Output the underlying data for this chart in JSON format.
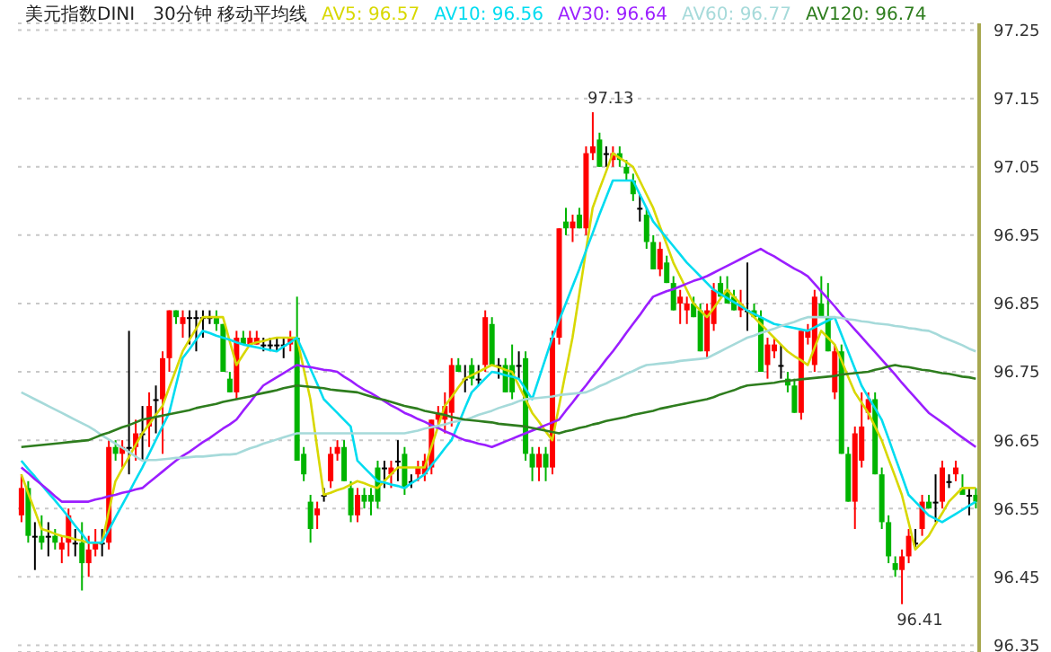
{
  "chart_data": {
    "type": "candlestick",
    "title": "美元指数DINI",
    "subtitle": "30分钟 移动平均线",
    "legend": "top",
    "grid": "y",
    "tick_labels": "y",
    "ylim": [
      96.34,
      97.26
    ],
    "yticks": [
      96.35,
      96.45,
      96.55,
      96.65,
      96.75,
      96.85,
      96.95,
      97.05,
      97.15,
      97.25
    ],
    "categories": [
      null,
      null,
      null,
      null,
      null,
      null,
      null,
      null,
      null,
      null,
      null,
      null,
      null,
      null,
      null,
      null,
      null,
      null,
      null,
      null,
      null,
      null,
      null,
      null,
      null,
      null,
      null,
      null,
      null,
      null,
      null,
      null,
      null,
      null,
      null,
      null,
      null,
      null,
      null,
      null,
      null,
      null,
      null,
      null,
      null,
      null,
      null,
      null,
      null,
      null,
      null,
      null,
      null,
      null,
      null,
      null,
      null,
      null,
      null,
      null,
      null,
      null,
      null,
      null,
      null,
      null,
      null,
      null,
      null,
      null,
      null,
      null,
      null,
      null,
      null,
      null,
      null,
      null,
      null,
      null,
      null,
      null,
      null,
      null,
      null,
      null,
      null,
      null,
      null,
      null,
      null,
      null,
      null,
      null,
      null,
      null,
      null,
      null,
      null,
      null,
      null,
      null,
      null,
      null,
      null,
      null,
      null,
      null,
      null,
      null,
      null,
      null,
      null,
      null,
      null,
      null,
      null,
      null,
      null,
      null,
      null,
      null,
      null,
      null,
      null,
      null,
      null,
      null,
      null,
      null,
      null,
      null,
      null,
      null,
      null,
      null,
      null,
      null,
      null,
      null,
      null,
      null,
      null
    ],
    "ohlc": [
      [
        96.54,
        96.6,
        96.53,
        96.58
      ],
      [
        96.58,
        96.59,
        96.5,
        96.51
      ],
      [
        96.51,
        96.53,
        96.46,
        96.51
      ],
      [
        96.51,
        96.54,
        96.49,
        96.5
      ],
      [
        96.51,
        96.53,
        96.48,
        96.51
      ],
      [
        96.51,
        96.52,
        96.49,
        96.5
      ],
      [
        96.49,
        96.51,
        96.47,
        96.5
      ],
      [
        96.5,
        96.55,
        96.48,
        96.54
      ],
      [
        96.5,
        96.52,
        96.48,
        96.5
      ],
      [
        96.5,
        96.53,
        96.43,
        96.47
      ],
      [
        96.47,
        96.51,
        96.45,
        96.49
      ],
      [
        96.49,
        96.52,
        96.48,
        96.5
      ],
      [
        96.5,
        96.52,
        96.48,
        96.5
      ],
      [
        96.5,
        96.65,
        96.49,
        96.64
      ],
      [
        96.64,
        96.65,
        96.62,
        96.63
      ],
      [
        96.63,
        96.65,
        96.61,
        96.64
      ],
      [
        96.64,
        96.81,
        96.6,
        96.64
      ],
      [
        96.64,
        96.68,
        96.62,
        96.66
      ],
      [
        96.66,
        96.7,
        96.62,
        96.66
      ],
      [
        96.67,
        96.72,
        96.64,
        96.7
      ],
      [
        96.71,
        96.73,
        96.66,
        96.71
      ],
      [
        96.71,
        96.78,
        96.63,
        96.77
      ],
      [
        96.77,
        96.84,
        96.75,
        96.84
      ],
      [
        96.84,
        96.84,
        96.82,
        96.83
      ],
      [
        96.82,
        96.84,
        96.8,
        96.83
      ],
      [
        96.83,
        96.84,
        96.79,
        96.83
      ],
      [
        96.83,
        96.84,
        96.78,
        96.83
      ],
      [
        96.83,
        96.84,
        96.8,
        96.83
      ],
      [
        96.83,
        96.84,
        96.82,
        96.83
      ],
      [
        96.83,
        96.84,
        96.81,
        96.82
      ],
      [
        96.82,
        96.82,
        96.75,
        96.75
      ],
      [
        96.74,
        96.75,
        96.72,
        96.72
      ],
      [
        96.72,
        96.81,
        96.71,
        96.8
      ],
      [
        96.8,
        96.81,
        96.79,
        96.79
      ],
      [
        96.79,
        96.81,
        96.79,
        96.8
      ],
      [
        96.79,
        96.81,
        96.79,
        96.8
      ],
      [
        96.79,
        96.8,
        96.78,
        96.79
      ],
      [
        96.79,
        96.8,
        96.78,
        96.79
      ],
      [
        96.79,
        96.8,
        96.78,
        96.79
      ],
      [
        96.79,
        96.8,
        96.77,
        96.79
      ],
      [
        96.79,
        96.81,
        96.78,
        96.8
      ],
      [
        96.8,
        96.86,
        96.62,
        96.62
      ],
      [
        96.63,
        96.64,
        96.59,
        96.6
      ],
      [
        96.56,
        96.57,
        96.5,
        96.52
      ],
      [
        96.54,
        96.56,
        96.52,
        96.55
      ],
      [
        96.57,
        96.58,
        96.56,
        96.57
      ],
      [
        96.59,
        96.64,
        96.58,
        96.63
      ],
      [
        96.63,
        96.65,
        96.62,
        96.64
      ],
      [
        96.64,
        96.65,
        96.59,
        96.59
      ],
      [
        96.58,
        96.59,
        96.53,
        96.54
      ],
      [
        96.54,
        96.58,
        96.53,
        96.57
      ],
      [
        96.57,
        96.58,
        96.55,
        96.56
      ],
      [
        96.57,
        96.58,
        96.54,
        96.56
      ],
      [
        96.61,
        96.62,
        96.55,
        96.56
      ],
      [
        96.61,
        96.62,
        96.58,
        96.61
      ],
      [
        96.6,
        96.62,
        96.58,
        96.61
      ],
      [
        96.62,
        96.65,
        96.59,
        96.62
      ],
      [
        96.63,
        96.64,
        96.57,
        96.58
      ],
      [
        96.59,
        96.6,
        96.58,
        96.59
      ],
      [
        96.6,
        96.62,
        96.59,
        96.61
      ],
      [
        96.6,
        96.63,
        96.59,
        96.62
      ],
      [
        96.61,
        96.68,
        96.6,
        96.68
      ],
      [
        96.68,
        96.7,
        96.67,
        96.69
      ],
      [
        96.68,
        96.72,
        96.66,
        96.7
      ],
      [
        96.69,
        96.77,
        96.67,
        96.76
      ],
      [
        96.76,
        96.77,
        96.75,
        96.75
      ],
      [
        96.74,
        96.76,
        96.72,
        96.74
      ],
      [
        96.76,
        96.77,
        96.73,
        96.74
      ],
      [
        96.74,
        96.76,
        96.73,
        96.74
      ],
      [
        96.76,
        96.84,
        96.75,
        96.83
      ],
      [
        96.82,
        96.83,
        96.76,
        96.76
      ],
      [
        96.76,
        96.77,
        96.74,
        96.76
      ],
      [
        96.76,
        96.77,
        96.72,
        96.72
      ],
      [
        96.76,
        96.79,
        96.71,
        96.72
      ],
      [
        96.76,
        96.78,
        96.74,
        96.76
      ],
      [
        96.77,
        96.78,
        96.62,
        96.63
      ],
      [
        96.63,
        96.64,
        96.59,
        96.61
      ],
      [
        96.61,
        96.64,
        96.59,
        96.63
      ],
      [
        96.63,
        96.64,
        96.59,
        96.61
      ],
      [
        96.61,
        96.81,
        96.6,
        96.8
      ],
      [
        96.8,
        96.96,
        96.79,
        96.96
      ],
      [
        96.97,
        96.99,
        96.95,
        96.96
      ],
      [
        96.96,
        96.98,
        96.94,
        96.97
      ],
      [
        96.98,
        96.99,
        96.96,
        96.96
      ],
      [
        96.96,
        97.08,
        96.95,
        97.07
      ],
      [
        97.07,
        97.13,
        97.06,
        97.08
      ],
      [
        97.09,
        97.1,
        97.05,
        97.05
      ],
      [
        97.07,
        97.08,
        97.05,
        97.07
      ],
      [
        97.06,
        97.08,
        97.05,
        97.07
      ],
      [
        97.07,
        97.08,
        97.05,
        97.06
      ],
      [
        97.05,
        97.06,
        97.03,
        97.04
      ],
      [
        97.03,
        97.04,
        97.0,
        97.01
      ],
      [
        96.99,
        97.01,
        96.97,
        96.99
      ],
      [
        96.98,
        96.99,
        96.93,
        96.94
      ],
      [
        96.94,
        96.95,
        96.9,
        96.9
      ],
      [
        96.9,
        96.94,
        96.89,
        96.93
      ],
      [
        96.91,
        96.92,
        96.88,
        96.88
      ],
      [
        96.88,
        96.89,
        96.84,
        96.84
      ],
      [
        96.85,
        96.87,
        96.82,
        96.86
      ],
      [
        96.84,
        96.86,
        96.82,
        96.85
      ],
      [
        96.85,
        96.86,
        96.83,
        96.83
      ],
      [
        96.84,
        96.85,
        96.78,
        96.78
      ],
      [
        96.78,
        96.85,
        96.77,
        96.84
      ],
      [
        96.82,
        96.88,
        96.81,
        96.87
      ],
      [
        96.88,
        96.89,
        96.86,
        96.86
      ],
      [
        96.87,
        96.89,
        96.85,
        96.85
      ],
      [
        96.86,
        96.87,
        96.84,
        96.84
      ],
      [
        96.84,
        96.87,
        96.83,
        96.85
      ],
      [
        96.84,
        96.91,
        96.81,
        96.84
      ],
      [
        96.84,
        96.85,
        96.83,
        96.83
      ],
      [
        96.83,
        96.84,
        96.75,
        96.75
      ],
      [
        96.76,
        96.8,
        96.74,
        96.79
      ],
      [
        96.78,
        96.8,
        96.77,
        96.79
      ],
      [
        96.76,
        96.79,
        96.74,
        96.76
      ],
      [
        96.74,
        96.75,
        96.72,
        96.73
      ],
      [
        96.73,
        96.74,
        96.69,
        96.69
      ],
      [
        96.69,
        96.81,
        96.68,
        96.81
      ],
      [
        96.8,
        96.82,
        96.79,
        96.81
      ],
      [
        96.76,
        96.87,
        96.75,
        96.86
      ],
      [
        96.85,
        96.89,
        96.83,
        96.83
      ],
      [
        96.83,
        96.88,
        96.78,
        96.78
      ],
      [
        96.72,
        96.79,
        96.71,
        96.78
      ],
      [
        96.78,
        96.79,
        96.63,
        96.63
      ],
      [
        96.63,
        96.64,
        96.56,
        96.56
      ],
      [
        96.56,
        96.67,
        96.52,
        96.66
      ],
      [
        96.62,
        96.72,
        96.61,
        96.67
      ],
      [
        96.69,
        96.72,
        96.68,
        96.71
      ],
      [
        96.71,
        96.72,
        96.6,
        96.6
      ],
      [
        96.6,
        96.61,
        96.52,
        96.53
      ],
      [
        96.53,
        96.54,
        96.47,
        96.48
      ],
      [
        96.47,
        96.48,
        96.45,
        96.46
      ],
      [
        96.46,
        96.49,
        96.41,
        96.48
      ],
      [
        96.48,
        96.52,
        96.47,
        96.51
      ],
      [
        96.5,
        96.52,
        96.49,
        96.5
      ],
      [
        96.52,
        96.57,
        96.51,
        96.56
      ],
      [
        96.56,
        96.57,
        96.55,
        96.55
      ],
      [
        96.56,
        96.6,
        96.53,
        96.56
      ],
      [
        96.56,
        96.62,
        96.55,
        96.61
      ],
      [
        96.59,
        96.6,
        96.58,
        96.59
      ],
      [
        96.6,
        96.62,
        96.59,
        96.61
      ],
      [
        96.58,
        96.6,
        96.57,
        96.57
      ],
      [
        96.57,
        96.58,
        96.54,
        96.57
      ],
      [
        96.57,
        96.58,
        96.55,
        96.56
      ]
    ],
    "series": [
      {
        "name": "AV5: 96.57",
        "type": "line",
        "color": "#d8d800",
        "values": [
          96.6,
          96.573,
          96.547,
          96.52,
          96.517,
          96.513,
          96.51,
          96.508,
          96.505,
          96.503,
          96.5,
          96.5,
          96.5,
          96.545,
          96.59,
          96.608,
          96.625,
          96.643,
          96.66,
          96.673,
          96.687,
          96.7,
          96.727,
          96.753,
          96.78,
          96.797,
          96.813,
          96.83,
          96.83,
          96.83,
          96.83,
          96.795,
          96.76,
          96.775,
          96.79,
          96.793,
          96.795,
          96.798,
          96.8,
          96.8,
          96.8,
          96.8,
          96.755,
          96.71,
          96.64,
          96.57,
          96.573,
          96.577,
          96.58,
          96.585,
          96.59,
          96.587,
          96.583,
          96.58,
          96.59,
          96.6,
          96.61,
          96.61,
          96.61,
          96.61,
          96.61,
          96.64,
          96.67,
          96.7,
          96.713,
          96.727,
          96.74,
          96.745,
          96.75,
          96.755,
          96.76,
          96.757,
          96.753,
          96.75,
          96.73,
          96.71,
          96.69,
          96.677,
          96.663,
          96.65,
          96.7,
          96.75,
          96.8,
          96.863,
          96.927,
          96.99,
          97.017,
          97.043,
          97.07,
          97.063,
          97.057,
          97.05,
          97.03,
          97.01,
          96.99,
          96.963,
          96.937,
          96.91,
          96.89,
          96.87,
          96.85,
          96.84,
          96.83,
          96.843,
          96.857,
          96.87,
          96.86,
          96.85,
          96.84,
          96.83,
          96.82,
          96.81,
          96.8,
          96.79,
          96.78,
          96.773,
          96.767,
          96.76,
          96.785,
          96.81,
          96.8,
          96.79,
          96.767,
          96.743,
          96.72,
          96.705,
          96.69,
          96.67,
          96.65,
          96.623,
          96.597,
          96.57,
          96.53,
          96.49,
          96.5,
          96.51,
          96.527,
          96.543,
          96.56,
          96.57,
          96.58,
          96.58,
          96.58
        ]
      },
      {
        "name": "AV10: 96.56",
        "type": "line",
        "color": "#00dcf0",
        "values": [
          96.62,
          96.608,
          96.597,
          96.585,
          96.573,
          96.562,
          96.55,
          96.538,
          96.525,
          96.513,
          96.5,
          96.5,
          96.5,
          96.518,
          96.537,
          96.555,
          96.573,
          96.592,
          96.61,
          96.63,
          96.65,
          96.67,
          96.69,
          96.73,
          96.77,
          96.783,
          96.797,
          96.81,
          96.807,
          96.803,
          96.8,
          96.797,
          96.793,
          96.79,
          96.788,
          96.786,
          96.784,
          96.782,
          96.78,
          96.787,
          96.793,
          96.8,
          96.778,
          96.755,
          96.733,
          96.71,
          96.7,
          96.69,
          96.68,
          96.67,
          96.62,
          96.61,
          96.6,
          96.59,
          96.588,
          96.585,
          96.583,
          96.58,
          96.587,
          96.593,
          96.6,
          96.613,
          96.625,
          96.638,
          96.65,
          96.673,
          96.697,
          96.72,
          96.73,
          96.74,
          96.75,
          96.748,
          96.745,
          96.743,
          96.74,
          96.725,
          96.71,
          96.74,
          96.77,
          96.8,
          96.825,
          96.85,
          96.875,
          96.9,
          96.927,
          96.953,
          96.98,
          97.005,
          97.03,
          97.03,
          97.03,
          97.03,
          97.01,
          96.99,
          96.97,
          96.958,
          96.946,
          96.934,
          96.922,
          96.91,
          96.9,
          96.89,
          96.88,
          96.87,
          96.864,
          96.858,
          96.852,
          96.846,
          96.84,
          96.835,
          96.83,
          96.825,
          96.82,
          96.818,
          96.816,
          96.814,
          96.812,
          96.81,
          96.815,
          96.82,
          96.825,
          96.83,
          96.805,
          96.78,
          96.755,
          96.73,
          96.713,
          96.697,
          96.68,
          96.653,
          96.625,
          96.598,
          96.57,
          96.56,
          96.55,
          96.54,
          96.535,
          96.53,
          96.536,
          96.542,
          96.548,
          96.554,
          96.56
        ]
      },
      {
        "name": "AV30: 96.64",
        "type": "line",
        "color": "#9b1eff",
        "values": [
          96.61,
          96.602,
          96.593,
          96.585,
          96.577,
          96.568,
          96.56,
          96.56,
          96.56,
          96.56,
          96.56,
          96.563,
          96.565,
          96.568,
          96.57,
          96.573,
          96.575,
          96.578,
          96.58,
          96.588,
          96.596,
          96.604,
          96.612,
          96.62,
          96.627,
          96.633,
          96.64,
          96.647,
          96.653,
          96.66,
          96.667,
          96.673,
          96.68,
          96.693,
          96.705,
          96.718,
          96.73,
          96.736,
          96.742,
          96.748,
          96.754,
          96.76,
          96.758,
          96.757,
          96.755,
          96.753,
          96.752,
          96.75,
          96.743,
          96.737,
          96.73,
          96.724,
          96.719,
          96.713,
          96.707,
          96.701,
          96.696,
          96.69,
          96.686,
          96.681,
          96.677,
          96.672,
          96.668,
          96.663,
          96.659,
          96.654,
          96.65,
          96.648,
          96.645,
          96.643,
          96.64,
          96.644,
          96.648,
          96.652,
          96.656,
          96.66,
          96.664,
          96.668,
          96.672,
          96.676,
          96.68,
          96.693,
          96.705,
          96.718,
          96.73,
          96.743,
          96.755,
          96.768,
          96.78,
          96.793,
          96.807,
          96.82,
          96.833,
          96.847,
          96.86,
          96.864,
          96.868,
          96.871,
          96.875,
          96.879,
          96.883,
          96.886,
          96.89,
          96.895,
          96.9,
          96.905,
          96.91,
          96.915,
          96.92,
          96.925,
          96.93,
          96.924,
          96.919,
          96.913,
          96.907,
          96.901,
          96.896,
          96.89,
          96.879,
          96.868,
          96.857,
          96.846,
          96.834,
          96.823,
          96.812,
          96.801,
          96.79,
          96.779,
          96.768,
          96.757,
          96.746,
          96.734,
          96.723,
          96.712,
          96.701,
          96.69,
          96.683,
          96.676,
          96.669,
          96.661,
          96.654,
          96.647,
          96.64
        ]
      },
      {
        "name": "AV60: 96.77",
        "type": "line",
        "color": "#a6dada",
        "values": [
          96.72,
          96.715,
          96.71,
          96.705,
          96.7,
          96.695,
          96.69,
          96.685,
          96.68,
          96.675,
          96.67,
          96.664,
          96.657,
          96.651,
          96.645,
          96.639,
          96.633,
          96.626,
          96.62,
          96.621,
          96.621,
          96.622,
          96.623,
          96.624,
          96.624,
          96.625,
          96.626,
          96.626,
          96.627,
          96.628,
          96.629,
          96.629,
          96.63,
          96.634,
          96.638,
          96.641,
          96.645,
          96.648,
          96.651,
          96.654,
          96.657,
          96.66,
          96.66,
          96.66,
          96.66,
          96.66,
          96.66,
          96.66,
          96.66,
          96.66,
          96.66,
          96.66,
          96.66,
          96.66,
          96.66,
          96.66,
          96.66,
          96.66,
          96.662,
          96.664,
          96.667,
          96.669,
          96.671,
          96.673,
          96.676,
          96.678,
          96.68,
          96.683,
          96.687,
          96.69,
          96.693,
          96.697,
          96.7,
          96.703,
          96.707,
          96.71,
          96.711,
          96.712,
          96.713,
          96.714,
          96.716,
          96.717,
          96.718,
          96.719,
          96.72,
          96.724,
          96.729,
          96.733,
          96.738,
          96.742,
          96.747,
          96.751,
          96.756,
          96.76,
          96.761,
          96.762,
          96.763,
          96.764,
          96.766,
          96.767,
          96.768,
          96.769,
          96.77,
          96.775,
          96.78,
          96.785,
          96.79,
          96.795,
          96.8,
          96.803,
          96.807,
          96.81,
          96.813,
          96.817,
          96.82,
          96.823,
          96.827,
          96.83,
          96.83,
          96.83,
          96.83,
          96.83,
          96.829,
          96.827,
          96.826,
          96.824,
          96.823,
          96.821,
          96.82,
          96.819,
          96.817,
          96.816,
          96.814,
          96.813,
          96.811,
          96.81,
          96.806,
          96.801,
          96.797,
          96.793,
          96.789,
          96.784,
          96.78
        ]
      },
      {
        "name": "AV120: 96.74",
        "type": "line",
        "color": "#2e7d1e",
        "values": [
          96.64,
          96.641,
          96.642,
          96.643,
          96.644,
          96.645,
          96.646,
          96.647,
          96.648,
          96.649,
          96.65,
          96.654,
          96.658,
          96.661,
          96.665,
          96.669,
          96.672,
          96.676,
          96.68,
          96.682,
          96.684,
          96.686,
          96.688,
          96.69,
          96.692,
          96.694,
          96.697,
          96.699,
          96.701,
          96.703,
          96.706,
          96.708,
          96.71,
          96.712,
          96.714,
          96.717,
          96.719,
          96.721,
          96.723,
          96.726,
          96.728,
          96.73,
          96.729,
          96.728,
          96.727,
          96.726,
          96.724,
          96.723,
          96.722,
          96.721,
          96.72,
          96.717,
          96.714,
          96.711,
          96.709,
          96.706,
          96.703,
          96.7,
          96.698,
          96.696,
          96.693,
          96.691,
          96.689,
          96.687,
          96.684,
          96.682,
          96.68,
          96.679,
          96.678,
          96.677,
          96.676,
          96.674,
          96.673,
          96.672,
          96.671,
          96.67,
          96.668,
          96.666,
          96.664,
          96.662,
          96.66,
          96.663,
          96.665,
          96.668,
          96.67,
          96.673,
          96.675,
          96.678,
          96.68,
          96.682,
          96.684,
          96.687,
          96.689,
          96.691,
          96.693,
          96.696,
          96.698,
          96.7,
          96.702,
          96.704,
          96.706,
          96.708,
          96.71,
          96.713,
          96.717,
          96.72,
          96.723,
          96.727,
          96.73,
          96.731,
          96.732,
          96.733,
          96.734,
          96.736,
          96.737,
          96.738,
          96.739,
          96.74,
          96.741,
          96.742,
          96.743,
          96.744,
          96.746,
          96.747,
          96.748,
          96.749,
          96.75,
          96.753,
          96.755,
          96.758,
          96.76,
          96.758,
          96.757,
          96.755,
          96.753,
          96.752,
          96.75,
          96.748,
          96.747,
          96.745,
          96.743,
          96.742,
          96.74
        ]
      }
    ],
    "annotations": [
      "97.13",
      "96.41"
    ]
  }
}
